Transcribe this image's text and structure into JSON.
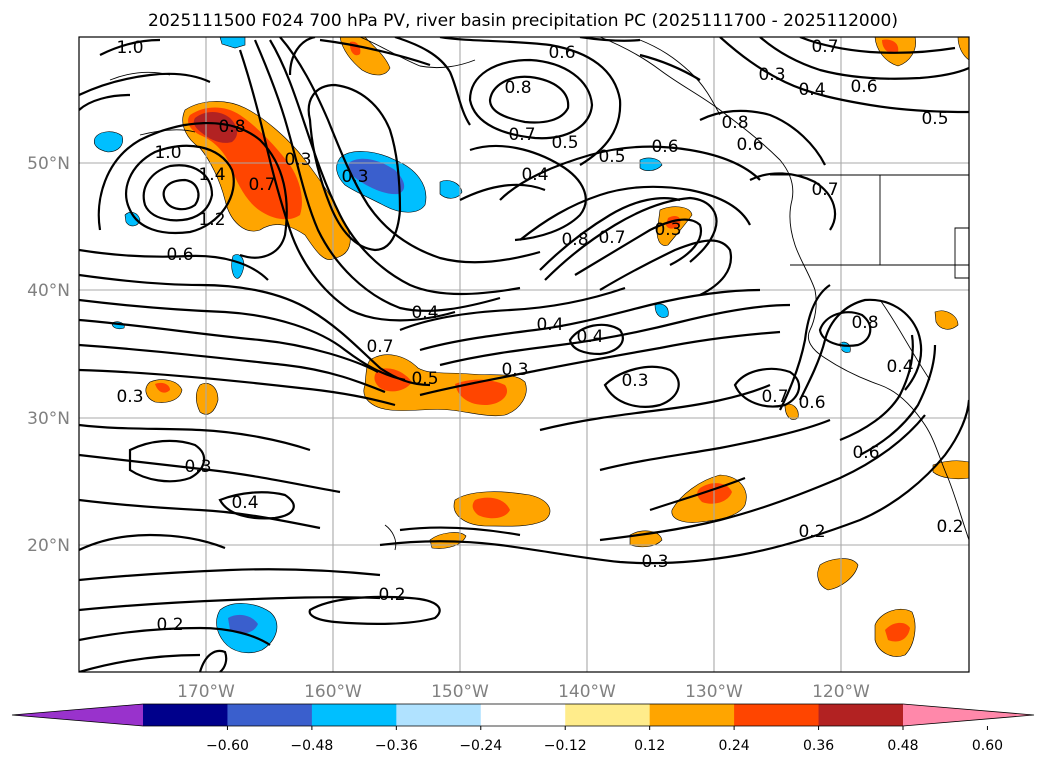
{
  "title": "2025111500 F024 700 hPa PV, river basin precipitation PC (2025111700 - 2025112000)",
  "lat_labels": [
    "50°N",
    "40°N",
    "30°N",
    "20°N"
  ],
  "lon_labels": [
    "170°W",
    "160°W",
    "150°W",
    "140°W",
    "130°W",
    "120°W"
  ],
  "colorbar": {
    "colors": [
      "#9932cc",
      "#00008b",
      "#3a5fcd",
      "#00bfff",
      "#b0e2ff",
      "#ffffff",
      "#ffec8b",
      "#ffa500",
      "#ff4500",
      "#b22222",
      "#ff88aa"
    ],
    "ticks": [
      "−0.60",
      "−0.48",
      "−0.36",
      "−0.24",
      "−0.12",
      "0.12",
      "0.24",
      "0.36",
      "0.48",
      "0.60"
    ]
  },
  "contour_labels": [
    {
      "text": "1.0"
    },
    {
      "text": "1.0"
    },
    {
      "text": "1.4"
    },
    {
      "text": "1.2"
    },
    {
      "text": "0.8"
    },
    {
      "text": "0.7"
    },
    {
      "text": "0.3"
    },
    {
      "text": "0.6"
    },
    {
      "text": "0.8"
    },
    {
      "text": "0.7"
    },
    {
      "text": "0.5"
    },
    {
      "text": "0.4"
    },
    {
      "text": "0.6"
    },
    {
      "text": "0.5"
    },
    {
      "text": "0.8"
    },
    {
      "text": "0.7"
    },
    {
      "text": "0.3"
    },
    {
      "text": "0.4"
    },
    {
      "text": "0.7"
    },
    {
      "text": "0.5"
    },
    {
      "text": "0.3"
    },
    {
      "text": "0.4"
    },
    {
      "text": "0.4"
    },
    {
      "text": "0.3"
    },
    {
      "text": "0.3"
    },
    {
      "text": "0.3"
    },
    {
      "text": "0.4"
    },
    {
      "text": "0.2"
    },
    {
      "text": "0.2"
    },
    {
      "text": "0.3"
    },
    {
      "text": "0.2"
    },
    {
      "text": "0.6"
    },
    {
      "text": "0.7"
    },
    {
      "text": "0.6"
    },
    {
      "text": "0.7"
    },
    {
      "text": "0.6"
    },
    {
      "text": "0.8"
    },
    {
      "text": "0.4"
    },
    {
      "text": "0.7"
    },
    {
      "text": "0.3"
    },
    {
      "text": "0.4"
    },
    {
      "text": "0.6"
    },
    {
      "text": "0.5"
    },
    {
      "text": "0.2"
    },
    {
      "text": "0.6"
    },
    {
      "text": "0.8"
    },
    {
      "text": "0.3"
    }
  ]
}
